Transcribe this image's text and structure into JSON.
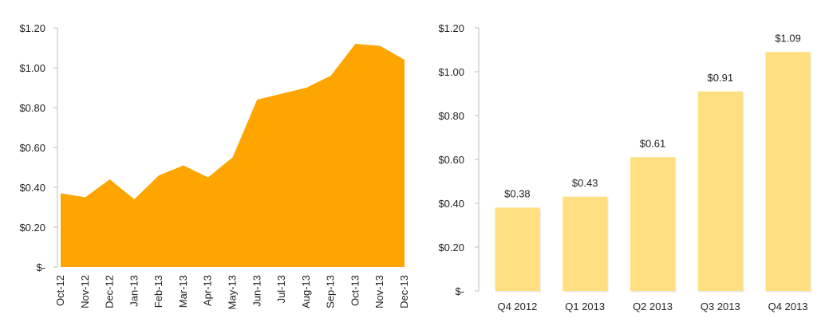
{
  "chart_data": [
    {
      "type": "area",
      "title": "",
      "xlabel": "",
      "ylabel": "",
      "ylim": [
        0,
        1.2
      ],
      "yticks": [
        0,
        0.2,
        0.4,
        0.6,
        0.8,
        1.0,
        1.2
      ],
      "ytick_labels": [
        "$-",
        "$0.20",
        "$0.40",
        "$0.60",
        "$0.80",
        "$1.00",
        "$1.20"
      ],
      "categories": [
        "Oct-12",
        "Nov-12",
        "Dec-12",
        "Jan-13",
        "Feb-13",
        "Mar-13",
        "Apr-13",
        "May-13",
        "Jun-13",
        "Jul-13",
        "Aug-13",
        "Sep-13",
        "Oct-13",
        "Nov-13",
        "Dec-13"
      ],
      "values": [
        0.37,
        0.35,
        0.44,
        0.34,
        0.46,
        0.51,
        0.45,
        0.55,
        0.84,
        0.87,
        0.9,
        0.96,
        1.12,
        1.11,
        1.04
      ],
      "color": "#ffa500",
      "grid": false,
      "legend": "none"
    },
    {
      "type": "bar",
      "title": "",
      "xlabel": "",
      "ylabel": "",
      "ylim": [
        0,
        1.2
      ],
      "yticks": [
        0,
        0.2,
        0.4,
        0.6,
        0.8,
        1.0,
        1.2
      ],
      "ytick_labels": [
        "$-",
        "$0.20",
        "$0.40",
        "$0.60",
        "$0.80",
        "$1.00",
        "$1.20"
      ],
      "categories": [
        "Q4 2012",
        "Q1 2013",
        "Q2 2013",
        "Q3 2013",
        "Q4 2013"
      ],
      "values": [
        0.38,
        0.43,
        0.61,
        0.91,
        1.09
      ],
      "data_labels": [
        "$0.38",
        "$0.43",
        "$0.61",
        "$0.91",
        "$1.09"
      ],
      "color": "#ffdf80",
      "grid": false,
      "legend": "none"
    }
  ]
}
